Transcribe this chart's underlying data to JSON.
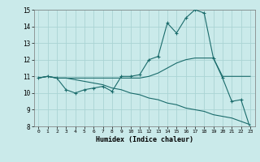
{
  "xlabel": "Humidex (Indice chaleur)",
  "ylabel": "",
  "xlim": [
    -0.5,
    23.5
  ],
  "ylim": [
    8,
    15
  ],
  "xticks": [
    0,
    1,
    2,
    3,
    4,
    5,
    6,
    7,
    8,
    9,
    10,
    11,
    12,
    13,
    14,
    15,
    16,
    17,
    18,
    19,
    20,
    21,
    22,
    23
  ],
  "yticks": [
    8,
    9,
    10,
    11,
    12,
    13,
    14,
    15
  ],
  "bg_color": "#caeaea",
  "grid_color": "#aad4d4",
  "line_color": "#1a6b6b",
  "line1_x": [
    0,
    1,
    2,
    3,
    4,
    5,
    6,
    7,
    8,
    9,
    10,
    11,
    12,
    13,
    14,
    15,
    16,
    17,
    18,
    19,
    20,
    21,
    22,
    23
  ],
  "line1_y": [
    10.9,
    11.0,
    10.9,
    10.2,
    10.0,
    10.2,
    10.3,
    10.4,
    10.1,
    11.0,
    11.0,
    11.1,
    12.0,
    12.2,
    14.2,
    13.6,
    14.5,
    15.0,
    14.8,
    12.1,
    10.9,
    9.5,
    9.6,
    7.9
  ],
  "line2_x": [
    0,
    1,
    2,
    3,
    4,
    5,
    6,
    7,
    8,
    9,
    10,
    11,
    12,
    13,
    14,
    15,
    16,
    17,
    18,
    19,
    20,
    21,
    22,
    23
  ],
  "line2_y": [
    10.9,
    11.0,
    10.9,
    10.9,
    10.9,
    10.9,
    10.9,
    10.9,
    10.9,
    10.9,
    10.9,
    10.9,
    11.0,
    11.2,
    11.5,
    11.8,
    12.0,
    12.1,
    12.1,
    12.1,
    11.0,
    11.0,
    11.0,
    11.0
  ],
  "line3_x": [
    0,
    1,
    2,
    3,
    4,
    5,
    6,
    7,
    8,
    9,
    10,
    11,
    12,
    13,
    14,
    15,
    16,
    17,
    18,
    19,
    20,
    21,
    22,
    23
  ],
  "line3_y": [
    10.9,
    11.0,
    10.9,
    10.9,
    10.8,
    10.7,
    10.6,
    10.5,
    10.3,
    10.2,
    10.0,
    9.9,
    9.7,
    9.6,
    9.4,
    9.3,
    9.1,
    9.0,
    8.9,
    8.7,
    8.6,
    8.5,
    8.3,
    8.1
  ]
}
